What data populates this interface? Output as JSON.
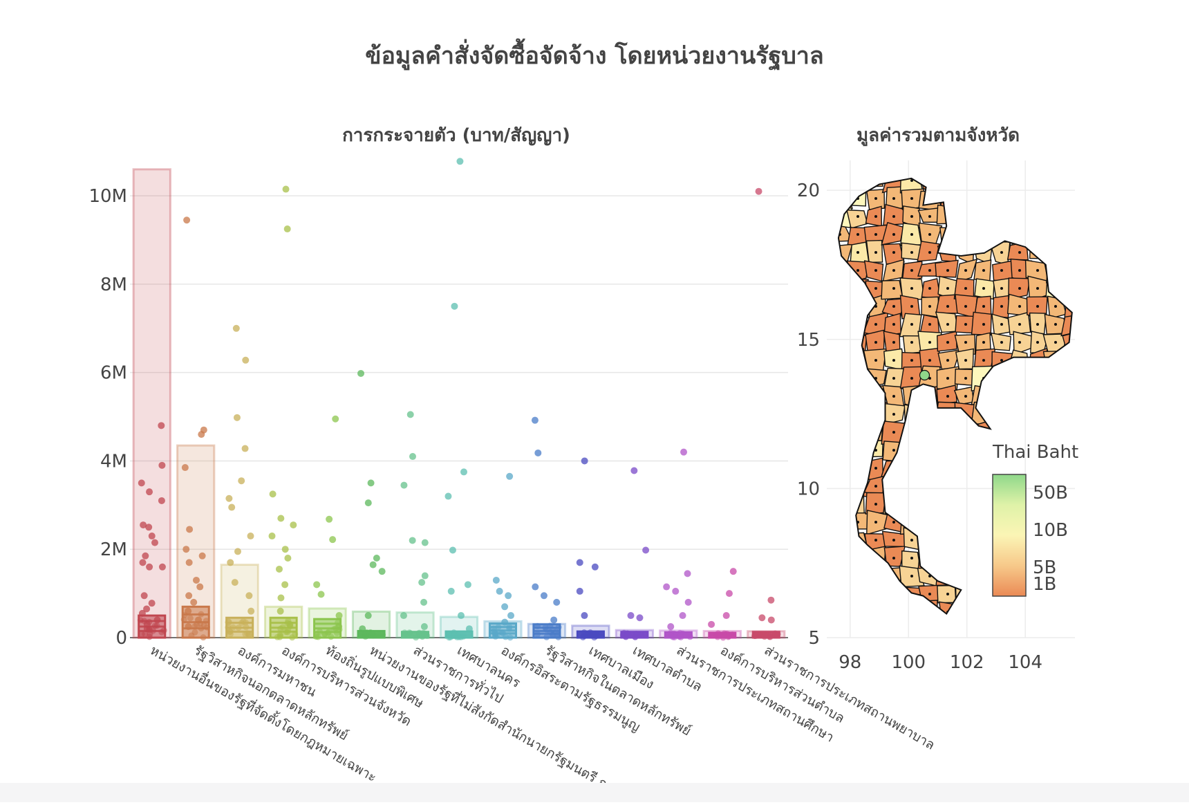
{
  "page": {
    "title": "ข้อมูลคำสั่งจัดซื้อจัดจ้าง โดยหน่วยงานรัฐบาล"
  },
  "chart_data": [
    {
      "type": "bar",
      "title": "การกระจายตัว (บาท/สัญญา)",
      "xlabel": "",
      "ylabel": "",
      "ylim": [
        0,
        10800000
      ],
      "y_ticks": [
        0,
        2000000,
        4000000,
        6000000,
        8000000,
        10000000
      ],
      "y_tick_labels": [
        "0",
        "2M",
        "4M",
        "6M",
        "8M",
        "10M"
      ],
      "grid": true,
      "categories": [
        "หน่วยงานอื่นของรัฐที่จัดตั้งโดยกฎหมายเฉพาะ",
        "รัฐวิสาหกิจนอกตลาดหลักทรัพย์",
        "องค์การมหาชน",
        "องค์การบริหารส่วนจังหวัด",
        "ท้องถิ่นรูปแบบพิเศษ",
        "หน่วยงานของรัฐที่ไม่สังกัดสำนักนายกรัฐมนตรี กระทรวง หรือทบวง",
        "ส่วนราชการทั่วไป",
        "เทศบาลนคร",
        "องค์กรอิสระตามรัฐธรรมนูญ",
        "รัฐวิสาหกิจในตลาดหลักทรัพย์",
        "เทศบาลเมือง",
        "เทศบาลตำบล",
        "ส่วนราชการประเภทสถานศึกษา",
        "องค์การบริหารส่วนตำบล",
        "ส่วนราชการประเภทสถานพยาบาล"
      ],
      "category_labels": [
        "หน่วยงานอื่นของรัฐที่จัดตั้งโดยกฎหมายเฉพาะ",
        "รัฐวิสาหกิจนอกตลาดหลักทรัพย์",
        "องค์การมหาชน",
        "องค์การบริหารส่วนจังหวัด",
        "ท้องถิ่นรูปแบบพิเศษ",
        "หน่วยงานของรัฐที่ไม่สังกัดสำนักนายกรัฐมนตรี ก",
        "ส่วนราชการทั่วไป",
        "เทศบาลนคร",
        "องค์กรอิสระตามรัฐธรรมนูญ",
        "รัฐวิสาหกิจในตลาดหลักทรัพย์",
        "เทศบาลเมือง",
        "เทศบาลตำบล",
        "ส่วนราชการประเภทสถานศึกษา",
        "องค์การบริหารส่วนตำบล",
        "ส่วนราชการประเภทสถานพยาบาล"
      ],
      "colors": [
        "#c0464f",
        "#c9784a",
        "#c8b05a",
        "#a8c049",
        "#8cc54e",
        "#5cb85c",
        "#66c28c",
        "#5cbfb0",
        "#5aa8c8",
        "#4a7cc8",
        "#4a4ac0",
        "#7a4ac8",
        "#b054c8",
        "#c84aa8",
        "#c84a6a"
      ],
      "values": [
        10600000,
        4350000,
        1650000,
        700000,
        660000,
        590000,
        570000,
        470000,
        370000,
        310000,
        270000,
        170000,
        160000,
        150000,
        145000
      ],
      "box_q3": [
        500000,
        700000,
        450000,
        450000,
        420000,
        150000,
        130000,
        140000,
        320000,
        300000,
        140000,
        130000,
        120000,
        110000,
        130000
      ],
      "points": [
        [
          4800000,
          3900000,
          3500000,
          3300000,
          3100000,
          2550000,
          2500000,
          2300000,
          2150000,
          1850000,
          1700000,
          1600000,
          1600000,
          950000,
          780000,
          650000,
          550000,
          400000,
          300000,
          200000
        ],
        [
          9450000,
          4700000,
          4600000,
          3850000,
          2450000,
          2000000,
          1850000,
          1700000,
          1300000,
          1150000,
          950000,
          800000,
          600000,
          400000,
          250000
        ],
        [
          7000000,
          6280000,
          4980000,
          4280000,
          3550000,
          3150000,
          2950000,
          2300000,
          1950000,
          1700000,
          1250000,
          950000,
          600000,
          350000
        ],
        [
          10150000,
          9250000,
          3250000,
          2700000,
          2550000,
          2300000,
          2000000,
          1800000,
          1550000,
          1200000,
          900000,
          600000,
          300000
        ],
        [
          4950000,
          2680000,
          2220000,
          1200000,
          980000,
          500000,
          250000
        ],
        [
          5980000,
          3500000,
          3050000,
          1800000,
          1650000,
          1500000,
          500000,
          200000
        ],
        [
          5050000,
          4100000,
          3450000,
          2200000,
          2150000,
          1400000,
          1250000,
          800000,
          500000,
          250000
        ],
        [
          10780000,
          7500000,
          3750000,
          3200000,
          1980000,
          1200000,
          1050000,
          500000,
          200000
        ],
        [
          3650000,
          1300000,
          1050000,
          950000,
          700000,
          500000,
          350000
        ],
        [
          4920000,
          4180000,
          1150000,
          950000,
          800000,
          400000
        ],
        [
          4000000,
          1700000,
          1600000,
          1050000,
          500000
        ],
        [
          3780000,
          1980000,
          500000,
          450000
        ],
        [
          4200000,
          1450000,
          1150000,
          1050000,
          800000,
          500000,
          250000
        ],
        [
          1500000,
          1000000,
          500000,
          300000
        ],
        [
          10100000,
          850000,
          450000,
          400000
        ]
      ]
    },
    {
      "type": "map",
      "title": "มูลค่ารวมตามจังหวัด",
      "xlim": [
        97.2,
        105.7
      ],
      "ylim": [
        5,
        21
      ],
      "x_ticks": [
        98,
        100,
        102,
        104
      ],
      "x_tick_labels": [
        "98",
        "100",
        "102",
        "104"
      ],
      "y_ticks": [
        5,
        10,
        15,
        20
      ],
      "y_tick_labels": [
        "5",
        "10",
        "15",
        "20"
      ],
      "grid": true,
      "legend": {
        "title": "Thai Baht",
        "labels": [
          "50B",
          "10B",
          "5B",
          "1B"
        ],
        "stops": [
          "#8fd88a",
          "#dff2a8",
          "#fbf5b5",
          "#f7c98a",
          "#ea8a55"
        ]
      },
      "region_colors": [
        "#ea8a55",
        "#f3b877",
        "#f7d395",
        "#fbe9a8",
        "#fdf7bd"
      ],
      "highlight_color": "#8fd88a"
    }
  ]
}
